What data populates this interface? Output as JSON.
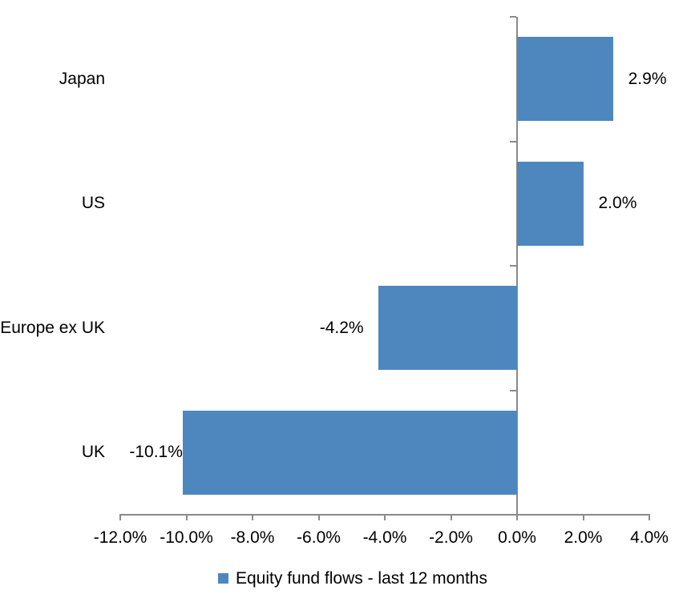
{
  "chart_data": {
    "type": "bar",
    "orientation": "horizontal",
    "title": "",
    "xlabel": "",
    "ylabel": "",
    "categories": [
      "Japan",
      "US",
      "Europe ex UK",
      "UK"
    ],
    "values": [
      2.9,
      2.0,
      -4.2,
      -10.1
    ],
    "data_labels": [
      "2.9%",
      "2.0%",
      "-4.2%",
      "-10.1%"
    ],
    "series_name": "Equity fund flows - last 12 months",
    "xlim": [
      -12,
      4
    ],
    "xtick_values": [
      -12,
      -10,
      -8,
      -6,
      -4,
      -2,
      0,
      2,
      4
    ],
    "xtick_labels": [
      "-12.0%",
      "-10.0%",
      "-8.0%",
      "-6.0%",
      "-4.0%",
      "-2.0%",
      "0.0%",
      "2.0%",
      "4.0%"
    ],
    "grid": false,
    "legend_position": "bottom",
    "bar_color": "#4e87be",
    "axis_color": "#8a8a8a",
    "text_color": "#000000"
  }
}
